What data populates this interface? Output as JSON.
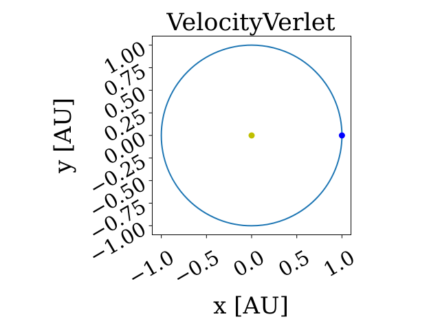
{
  "chart_data": {
    "type": "scatter",
    "title": "VelocityVerlet",
    "xlabel": "x [AU]",
    "ylabel": "y [AU]",
    "xlim": [
      -1.1,
      1.1
    ],
    "ylim": [
      -1.1,
      1.1
    ],
    "x_ticks": [
      "−1.0",
      "−0.5",
      "0.0",
      "0.5",
      "1.0"
    ],
    "x_tick_values": [
      -1.0,
      -0.5,
      0.0,
      0.5,
      1.0
    ],
    "y_ticks": [
      "−1.00",
      "−0.75",
      "−0.50",
      "−0.25",
      "0.00",
      "0.25",
      "0.50",
      "0.75",
      "1.00"
    ],
    "y_tick_values": [
      -1.0,
      -0.75,
      -0.5,
      -0.25,
      0.0,
      0.25,
      0.5,
      0.75,
      1.0
    ],
    "grid": false,
    "tick_label_rotation": 30,
    "series": [
      {
        "kind": "line",
        "shape": "circle",
        "center": [
          0.0,
          0.0
        ],
        "radius": 1.0,
        "color": "#1f77b4"
      },
      {
        "kind": "point",
        "x": 0.0,
        "y": 0.0,
        "color": "#bfbf00"
      },
      {
        "kind": "point",
        "x": 1.0,
        "y": 0.0,
        "color": "#0000ff"
      }
    ]
  }
}
